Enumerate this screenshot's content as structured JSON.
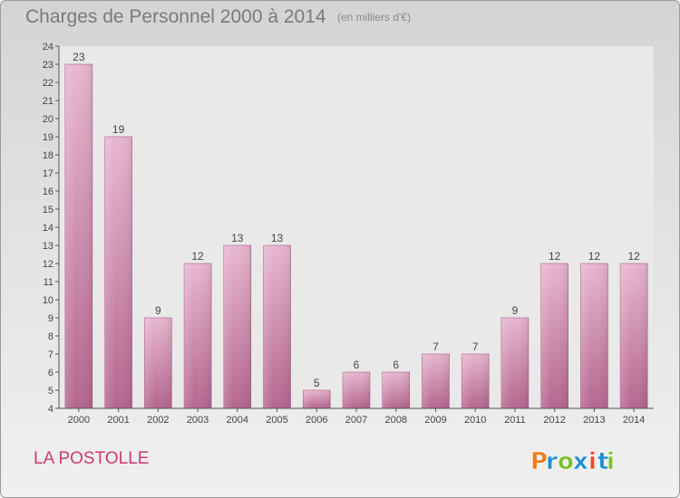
{
  "chart_data": {
    "type": "bar",
    "title": "Charges de Personnel 2000 à 2014",
    "subtitle": "(en milliers d'€)",
    "categories": [
      "2000",
      "2001",
      "2002",
      "2003",
      "2004",
      "2005",
      "2006",
      "2007",
      "2008",
      "2009",
      "2010",
      "2011",
      "2012",
      "2013",
      "2014"
    ],
    "values": [
      23,
      19,
      9,
      12,
      13,
      13,
      5,
      6,
      6,
      7,
      7,
      9,
      12,
      12,
      12
    ],
    "ylim": [
      4,
      24
    ],
    "ytick_step": 1,
    "grid": false,
    "bar_color": "#c0739c"
  },
  "footer": {
    "commune": "LA POSTOLLE",
    "logo_text": "Proxiti"
  },
  "colors": {
    "commune_text": "#cc3a74",
    "logo_letters": [
      "#ee7d1a",
      "#1e8fd6",
      "#7bbf2a",
      "#1e8fd6",
      "#e84830",
      "#1e8fd6",
      "#7bbf2a"
    ]
  }
}
